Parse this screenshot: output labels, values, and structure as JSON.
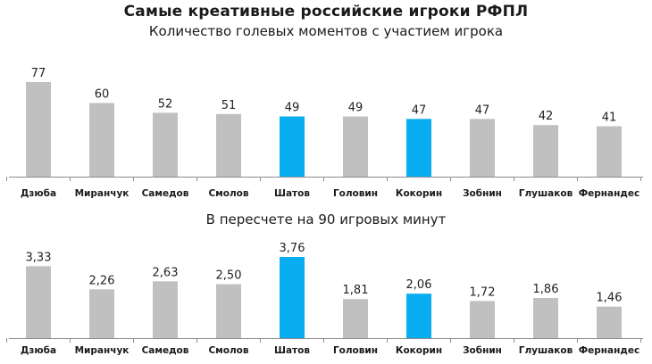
{
  "title": "Самые креативные российские игроки РФПЛ",
  "colors": {
    "default_bar": "#c0c0c0",
    "highlight_bar": "#08aef0",
    "axis": "#8c8c8c"
  },
  "chart_data": [
    {
      "type": "bar",
      "title": "Количество голевых моментов с участием игрока",
      "categories": [
        "Дзюба",
        "Миранчук",
        "Самедов",
        "Смолов",
        "Шатов",
        "Головин",
        "Кокорин",
        "Зобнин",
        "Глушаков",
        "Фернандес"
      ],
      "values": [
        77,
        60,
        52,
        51,
        49,
        49,
        47,
        47,
        42,
        41
      ],
      "value_labels": [
        "77",
        "60",
        "52",
        "51",
        "49",
        "49",
        "47",
        "47",
        "42",
        "41"
      ],
      "highlighted": [
        "Шатов",
        "Кокорин"
      ],
      "ylim": [
        0,
        77
      ],
      "grid": false
    },
    {
      "type": "bar",
      "title": "В пересчете на 90 игровых минут",
      "categories": [
        "Дзюба",
        "Миранчук",
        "Самедов",
        "Смолов",
        "Шатов",
        "Головин",
        "Кокорин",
        "Зобнин",
        "Глушаков",
        "Фернандес"
      ],
      "values": [
        3.33,
        2.26,
        2.63,
        2.5,
        3.76,
        1.81,
        2.06,
        1.72,
        1.86,
        1.46
      ],
      "value_labels": [
        "3,33",
        "2,26",
        "2,63",
        "2,50",
        "3,76",
        "1,81",
        "2,06",
        "1,72",
        "1,86",
        "1,46"
      ],
      "highlighted": [
        "Шатов",
        "Кокорин"
      ],
      "ylim": [
        0,
        3.76
      ],
      "grid": false
    }
  ]
}
